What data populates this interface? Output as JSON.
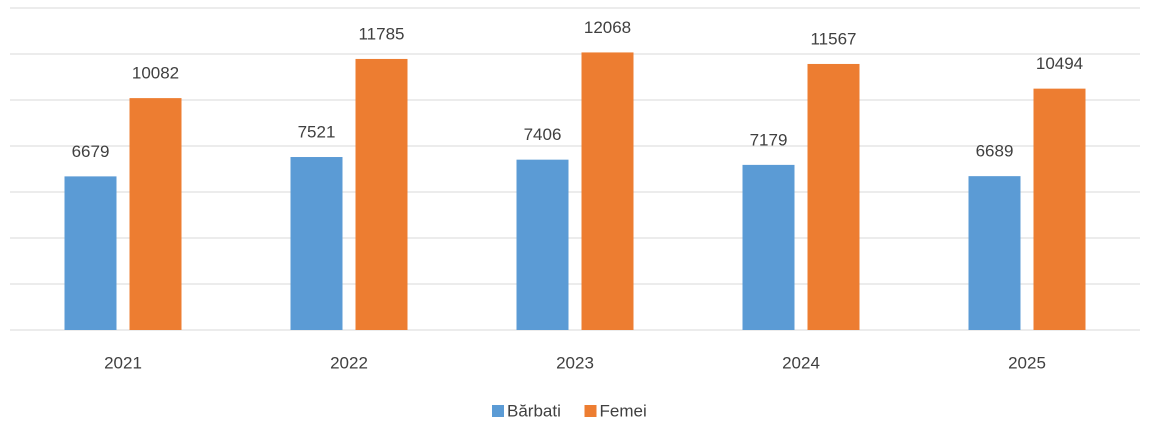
{
  "chart_data": {
    "type": "bar",
    "categories": [
      "2021",
      "2022",
      "2023",
      "2024",
      "2025"
    ],
    "series": [
      {
        "name": "Bărbati",
        "color": "#5b9bd5",
        "values": [
          6679,
          7521,
          7406,
          7179,
          6689
        ]
      },
      {
        "name": "Femei",
        "color": "#ed7d31",
        "values": [
          10082,
          11785,
          12068,
          11567,
          10494
        ]
      }
    ],
    "ylim": [
      0,
      14000
    ],
    "yticks": [
      0,
      2000,
      4000,
      6000,
      8000,
      10000,
      12000,
      14000
    ],
    "grid": true,
    "legend": "bottom"
  }
}
